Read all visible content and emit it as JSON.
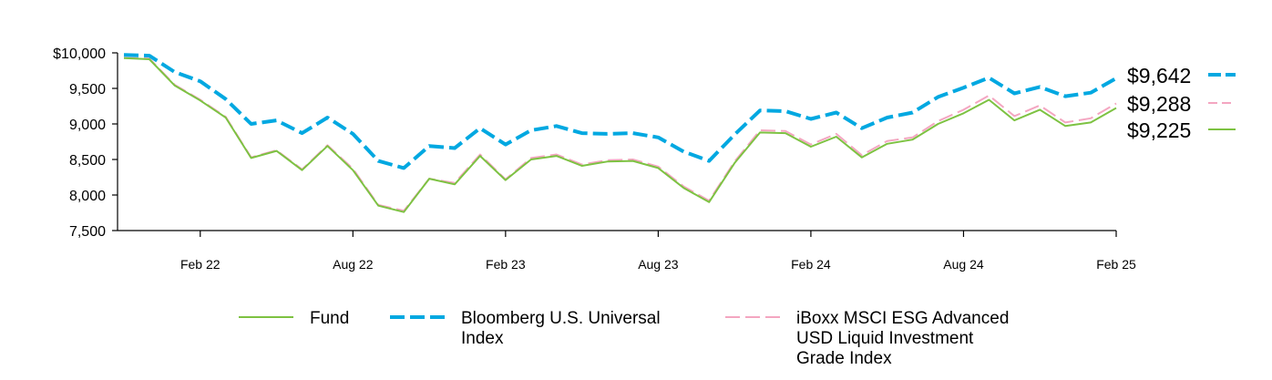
{
  "chart_data": {
    "type": "line",
    "x": [
      "Nov 21",
      "Dec 21",
      "Jan 22",
      "Feb 22",
      "Mar 22",
      "Apr 22",
      "May 22",
      "Jun 22",
      "Jul 22",
      "Aug 22",
      "Sep 22",
      "Oct 22",
      "Nov 22",
      "Dec 22",
      "Jan 23",
      "Feb 23",
      "Mar 23",
      "Apr 23",
      "May 23",
      "Jun 23",
      "Jul 23",
      "Aug 23",
      "Sep 23",
      "Oct 23",
      "Nov 23",
      "Dec 23",
      "Jan 24",
      "Feb 24",
      "Mar 24",
      "Apr 24",
      "May 24",
      "Jun 24",
      "Jul 24",
      "Aug 24",
      "Sep 24",
      "Oct 24",
      "Nov 24",
      "Dec 24",
      "Jan 25",
      "Feb 25"
    ],
    "x_ticks": [
      "Feb 22",
      "Aug 22",
      "Feb 23",
      "Aug 23",
      "Feb 24",
      "Aug 24",
      "Feb 25"
    ],
    "y_ticks": [
      "$10,000",
      "9,500",
      "9,000",
      "8,500",
      "8,000",
      "7,500"
    ],
    "ylim": [
      7500,
      10000
    ],
    "series": [
      {
        "name": "Fund",
        "color": "#7dc242",
        "style": "solid",
        "end_label": "$9,225",
        "values": [
          9925,
          9910,
          9540,
          9330,
          9090,
          8520,
          8620,
          8350,
          8690,
          8350,
          7850,
          7760,
          8230,
          8150,
          8550,
          8210,
          8500,
          8550,
          8410,
          8470,
          8480,
          8380,
          8100,
          7900,
          8450,
          8880,
          8870,
          8680,
          8820,
          8530,
          8720,
          8780,
          9000,
          9150,
          9340,
          9050,
          9200,
          8970,
          9020,
          9225
        ]
      },
      {
        "name": "Bloomberg U.S. Universal Index",
        "color": "#00a8e1",
        "style": "dashed",
        "end_label": "$9,642",
        "values": [
          9970,
          9960,
          9730,
          9600,
          9350,
          9000,
          9050,
          8870,
          9090,
          8860,
          8480,
          8380,
          8690,
          8660,
          8940,
          8710,
          8910,
          8970,
          8870,
          8860,
          8870,
          8810,
          8610,
          8480,
          8850,
          9190,
          9180,
          9070,
          9160,
          8940,
          9090,
          9160,
          9380,
          9510,
          9650,
          9430,
          9520,
          9390,
          9440,
          9642
        ]
      },
      {
        "name": "iBoxx MSCI ESG Advanced USD Liquid Investment Grade Index",
        "color": "#f4a6c1",
        "style": "dashed",
        "end_label": "$9,288",
        "values": [
          9930,
          9920,
          9550,
          9340,
          9100,
          8530,
          8630,
          8360,
          8700,
          8370,
          7860,
          7780,
          8230,
          8170,
          8570,
          8220,
          8520,
          8570,
          8430,
          8490,
          8500,
          8400,
          8120,
          7920,
          8470,
          8910,
          8900,
          8710,
          8860,
          8560,
          8760,
          8810,
          9040,
          9200,
          9400,
          9110,
          9260,
          9020,
          9080,
          9288
        ]
      }
    ],
    "legend_lines": {
      "fund": [
        "Fund"
      ],
      "bloomberg": [
        "Bloomberg U.S. Universal",
        "Index"
      ],
      "iboxx": [
        "iBoxx MSCI ESG Advanced",
        "USD Liquid Investment",
        "Grade Index"
      ]
    },
    "legend_placement": "bottom",
    "grid": false
  }
}
